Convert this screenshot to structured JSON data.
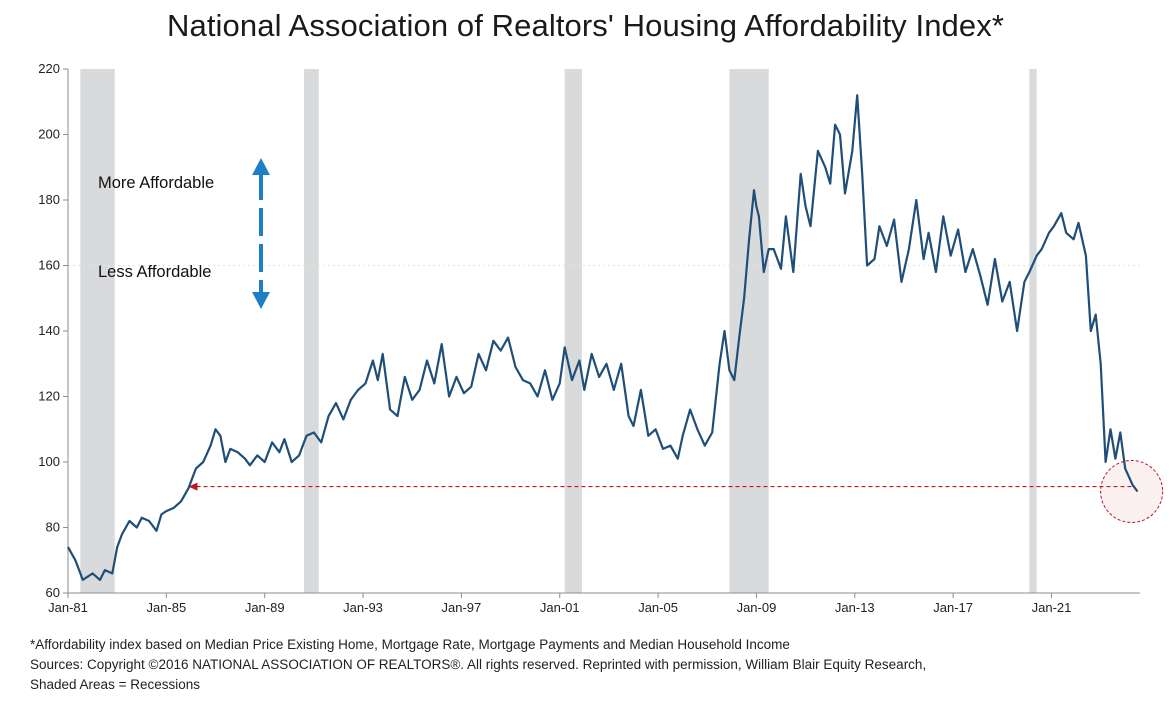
{
  "chart_data": {
    "type": "line",
    "title": "National Association of Realtors' Housing Affordability Index*",
    "xlabel": "",
    "ylabel": "",
    "ylim": [
      60,
      220
    ],
    "yticks": [
      60,
      80,
      100,
      120,
      140,
      160,
      180,
      200,
      220
    ],
    "xlim": [
      1981.0,
      2024.6
    ],
    "xticks": [
      "Jan-81",
      "Jan-85",
      "Jan-89",
      "Jan-93",
      "Jan-97",
      "Jan-01",
      "Jan-05",
      "Jan-09",
      "Jan-13",
      "Jan-17",
      "Jan-21"
    ],
    "xtick_years": [
      1981,
      1985,
      1989,
      1993,
      1997,
      2001,
      2005,
      2009,
      2013,
      2017,
      2021
    ],
    "grid": false,
    "legend": "none",
    "series": [
      {
        "color": "#1f4e79",
        "x": [
          1981.0,
          1981.3,
          1981.6,
          1981.8,
          1982.0,
          1982.3,
          1982.5,
          1982.8,
          1983.0,
          1983.2,
          1983.5,
          1983.8,
          1984.0,
          1984.3,
          1984.6,
          1984.8,
          1985.0,
          1985.3,
          1985.6,
          1985.9,
          1986.2,
          1986.5,
          1986.8,
          1987.0,
          1987.2,
          1987.4,
          1987.6,
          1987.9,
          1988.2,
          1988.4,
          1988.7,
          1989.0,
          1989.3,
          1989.6,
          1989.8,
          1990.1,
          1990.4,
          1990.7,
          1991.0,
          1991.3,
          1991.6,
          1991.9,
          1992.2,
          1992.5,
          1992.8,
          1993.1,
          1993.4,
          1993.6,
          1993.8,
          1994.1,
          1994.4,
          1994.7,
          1995.0,
          1995.3,
          1995.6,
          1995.9,
          1996.2,
          1996.5,
          1996.8,
          1997.1,
          1997.4,
          1997.7,
          1998.0,
          1998.3,
          1998.6,
          1998.9,
          1999.2,
          1999.5,
          1999.8,
          2000.1,
          2000.4,
          2000.7,
          2001.0,
          2001.2,
          2001.5,
          2001.8,
          2002.0,
          2002.3,
          2002.6,
          2002.9,
          2003.2,
          2003.5,
          2003.8,
          2004.0,
          2004.3,
          2004.6,
          2004.9,
          2005.2,
          2005.5,
          2005.8,
          2006.0,
          2006.3,
          2006.6,
          2006.9,
          2007.2,
          2007.5,
          2007.7,
          2007.9,
          2008.1,
          2008.3,
          2008.5,
          2008.7,
          2008.9,
          2009.0,
          2009.1,
          2009.3,
          2009.5,
          2009.7,
          2010.0,
          2010.2,
          2010.5,
          2010.8,
          2011.0,
          2011.2,
          2011.5,
          2011.8,
          2012.0,
          2012.2,
          2012.4,
          2012.6,
          2012.9,
          2013.1,
          2013.3,
          2013.5,
          2013.8,
          2014.0,
          2014.3,
          2014.6,
          2014.9,
          2015.2,
          2015.5,
          2015.8,
          2016.0,
          2016.3,
          2016.6,
          2016.9,
          2017.2,
          2017.5,
          2017.8,
          2018.1,
          2018.4,
          2018.7,
          2019.0,
          2019.3,
          2019.6,
          2019.9,
          2020.1,
          2020.4,
          2020.6,
          2020.9,
          2021.1,
          2021.4,
          2021.6,
          2021.9,
          2022.1,
          2022.4,
          2022.6,
          2022.8,
          2023.0,
          2023.2,
          2023.4,
          2023.6,
          2023.8,
          2024.0,
          2024.3,
          2024.5
        ],
        "y": [
          74,
          70,
          64,
          65,
          66,
          64,
          67,
          66,
          74,
          78,
          82,
          80,
          83,
          82,
          79,
          84,
          85,
          86,
          88,
          92,
          98,
          100,
          105,
          110,
          108,
          100,
          104,
          103,
          101,
          99,
          102,
          100,
          106,
          103,
          107,
          100,
          102,
          108,
          109,
          106,
          114,
          118,
          113,
          119,
          122,
          124,
          131,
          125,
          133,
          116,
          114,
          126,
          119,
          122,
          131,
          124,
          136,
          120,
          126,
          121,
          123,
          133,
          128,
          137,
          134,
          138,
          129,
          125,
          124,
          120,
          128,
          119,
          124,
          135,
          125,
          131,
          122,
          133,
          126,
          130,
          122,
          130,
          114,
          111,
          122,
          108,
          110,
          104,
          105,
          101,
          108,
          116,
          110,
          105,
          109,
          130,
          140,
          128,
          125,
          138,
          150,
          168,
          183,
          178,
          175,
          158,
          165,
          165,
          159,
          175,
          158,
          188,
          178,
          172,
          195,
          190,
          185,
          203,
          200,
          182,
          195,
          212,
          188,
          160,
          162,
          172,
          166,
          174,
          155,
          165,
          180,
          162,
          170,
          158,
          175,
          163,
          171,
          158,
          165,
          157,
          148,
          162,
          149,
          155,
          140,
          155,
          158,
          163,
          165,
          170,
          172,
          176,
          170,
          168,
          173,
          163,
          140,
          145,
          130,
          100,
          110,
          101,
          109,
          98,
          93,
          91
        ]
      }
    ],
    "recessions": [
      {
        "start": 1981.5,
        "end": 1982.9
      },
      {
        "start": 1990.6,
        "end": 1991.2
      },
      {
        "start": 2001.2,
        "end": 2001.9
      },
      {
        "start": 2007.9,
        "end": 2009.5
      },
      {
        "start": 2020.1,
        "end": 2020.4
      }
    ],
    "reference_line": {
      "value": 92.5,
      "from_x": 1985.9,
      "to_x": 2024.3
    },
    "highlight_circle": {
      "x": 2024.3,
      "y": 91
    },
    "arrow_labels": {
      "up": "More Affordable",
      "down": "Less Affordable"
    }
  },
  "colors": {
    "line": "#1f4e79",
    "recession": "#d9dadb",
    "arrow": "#1f7fc6",
    "reference": "#c0151c",
    "axis": "#8c8c8c"
  },
  "footnotes": {
    "line1": "*Affordability index based on Median Price Existing Home, Mortgage Rate, Mortgage Payments and Median Household Income",
    "line2": "Sources: Copyright ©2016 NATIONAL ASSOCIATION OF REALTORS®. All rights reserved. Reprinted with permission, William Blair Equity Research,",
    "line3": "Shaded Areas = Recessions"
  }
}
